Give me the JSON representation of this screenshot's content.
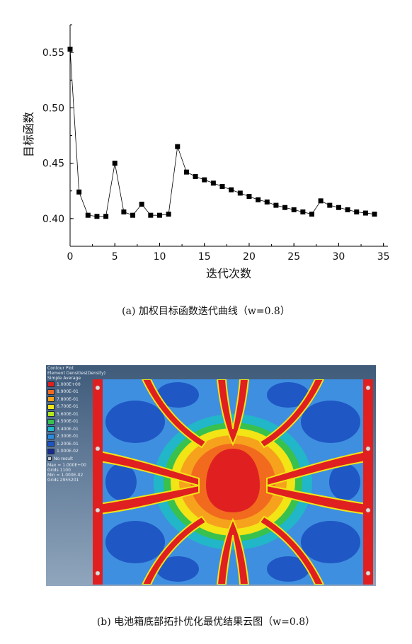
{
  "chart_data": [
    {
      "type": "line",
      "title": "",
      "xlabel": "迭代次数",
      "ylabel": "目标函数",
      "xlim": [
        0,
        35.5
      ],
      "ylim": [
        0.375,
        0.575
      ],
      "x_ticks": [
        "0",
        "5",
        "10",
        "15",
        "20",
        "25",
        "30",
        "35"
      ],
      "y_ticks": [
        "0.40",
        "0.45",
        "0.50",
        "0.55"
      ],
      "marker": "square",
      "x": [
        0,
        1,
        2,
        3,
        4,
        5,
        6,
        7,
        8,
        9,
        10,
        11,
        12,
        13,
        14,
        15,
        16,
        17,
        18,
        19,
        20,
        21,
        22,
        23,
        24,
        25,
        26,
        27,
        28,
        29,
        30,
        31,
        32,
        33,
        34
      ],
      "values": [
        0.553,
        0.424,
        0.403,
        0.402,
        0.402,
        0.45,
        0.406,
        0.403,
        0.413,
        0.403,
        0.403,
        0.404,
        0.465,
        0.442,
        0.438,
        0.435,
        0.432,
        0.429,
        0.426,
        0.423,
        0.42,
        0.417,
        0.415,
        0.412,
        0.41,
        0.408,
        0.406,
        0.404,
        0.416,
        0.412,
        0.41,
        0.408,
        0.406,
        0.405,
        0.404
      ],
      "grid": false
    },
    {
      "type": "heatmap",
      "title": "Contour Plot",
      "subtitle": "Element Densities(Density)",
      "averaging": "Simple Average",
      "legend_values": [
        "1.000E+00",
        "8.900E-01",
        "7.800E-01",
        "6.700E-01",
        "5.600E-01",
        "4.500E-01",
        "3.400E-01",
        "2.300E-01",
        "1.200E-01",
        "1.000E-02"
      ],
      "legend_colors": [
        "#e02020",
        "#f26a1e",
        "#f7a21c",
        "#f2e415",
        "#b4e61e",
        "#39c14e",
        "#21b6c8",
        "#2b8be0",
        "#1f54c8",
        "#1b2a8f"
      ],
      "no_result_label": "No result",
      "stats": [
        "Max = 1.000E+00",
        "Grids 1100",
        "Min = 1.000E-02",
        "Grids 2955201"
      ]
    }
  ],
  "captions": {
    "a": "(a) 加权目标函数迭代曲线（w=0.8）",
    "b": "(b) 电池箱底部拓扑优化最优结果云图（w=0.8）"
  }
}
